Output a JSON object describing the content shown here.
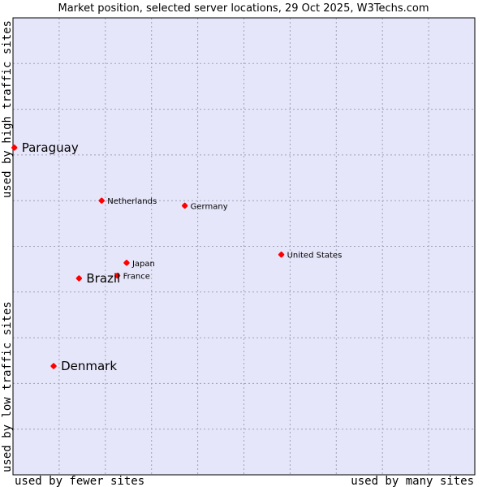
{
  "chart_data": {
    "type": "scatter",
    "title": "Market position, selected server locations, 29 Oct 2025, W3Techs.com",
    "xlabel_left": "used by fewer sites",
    "xlabel_right": "used by many sites",
    "ylabel_bottom": "used by low traffic sites",
    "ylabel_top": "used by high traffic sites",
    "xlim": [
      0,
      100
    ],
    "ylim": [
      0,
      100
    ],
    "grid": true,
    "colors": {
      "plot_bg": "#e6e6fa",
      "grid": "#a0a0b8",
      "border": "#000000",
      "marker": "#ff0000"
    },
    "points": [
      {
        "name": "Paraguay",
        "x": 0.3,
        "y": 71.6,
        "size": "large"
      },
      {
        "name": "Netherlands",
        "x": 19.2,
        "y": 60.0,
        "size": "small"
      },
      {
        "name": "Germany",
        "x": 37.2,
        "y": 58.9,
        "size": "small"
      },
      {
        "name": "United States",
        "x": 58.1,
        "y": 48.2,
        "size": "small"
      },
      {
        "name": "Japan",
        "x": 24.6,
        "y": 46.4,
        "size": "small"
      },
      {
        "name": "France",
        "x": 22.6,
        "y": 43.6,
        "size": "small"
      },
      {
        "name": "Brazil",
        "x": 14.3,
        "y": 43.0,
        "size": "large"
      },
      {
        "name": "Denmark",
        "x": 8.8,
        "y": 23.8,
        "size": "large"
      }
    ]
  }
}
